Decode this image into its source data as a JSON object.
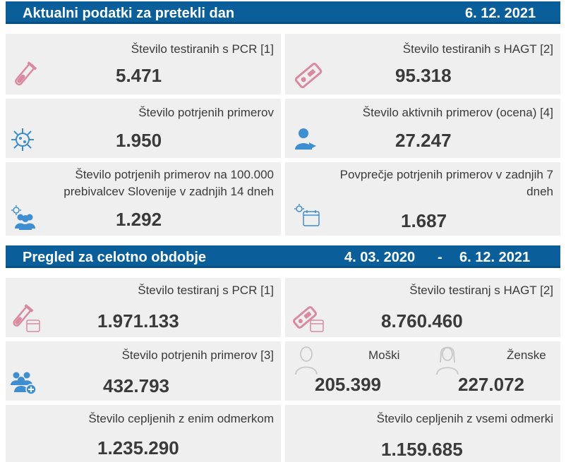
{
  "daily": {
    "title": "Aktualni podatki za pretekli dan",
    "date": "6. 12. 2021",
    "pcr": {
      "label": "Število testiranih s PCR [1]",
      "value": "5.471"
    },
    "hagt": {
      "label": "Število testiranih s HAGT [2]",
      "value": "95.318"
    },
    "confirmed": {
      "label": "Število potrjenih primerov",
      "value": "1.950"
    },
    "active": {
      "label": "Število aktivnih primerov (ocena) [4]",
      "value": "27.247"
    },
    "per100k": {
      "label_line1": "Število potrjenih primerov na 100.000",
      "label_line2": "prebivalcev Slovenije v zadnjih 14 dneh",
      "value": "1.292"
    },
    "avg7": {
      "label_line1": "Povprečje potrjenih primerov v zadnjih 7",
      "label_line2": "dneh",
      "value": "1.687"
    }
  },
  "total": {
    "title": "Pregled za celotno obdobje",
    "date_from": "4. 03. 2020",
    "dash": "-",
    "date_to": "6. 12. 2021",
    "pcr": {
      "label": "Število testiranj s PCR [1]",
      "value": "1.971.133"
    },
    "hagt": {
      "label": "Število testiranj s HAGT [2]",
      "value": "8.760.460"
    },
    "confirmed": {
      "label": "Število potrjenih primerov [3]",
      "value": "432.793"
    },
    "male": {
      "label": "Moški",
      "value": "205.399"
    },
    "female": {
      "label": "Ženske",
      "value": "227.072"
    },
    "vacc1": {
      "label": "Število cepljenih z enim odmerkom",
      "value": "1.235.290"
    },
    "vacc_all": {
      "label": "Število cepljenih z vsemi odmerki",
      "value": "1.159.685"
    }
  },
  "colors": {
    "header": "#0a5f9a",
    "card": "#efefef",
    "test_icon": "#d98aa0",
    "people_icon": "#3d8fd1",
    "person_outline": "#c8c8c8"
  },
  "icons": [
    "test-tube-icon",
    "antigen-test-icon",
    "virus-icon",
    "active-person-icon",
    "group-virus-icon",
    "calendar-virus-icon",
    "test-tube-calendar-icon",
    "antigen-calendar-icon",
    "group-plus-icon",
    "male-person-icon",
    "female-person-icon"
  ]
}
